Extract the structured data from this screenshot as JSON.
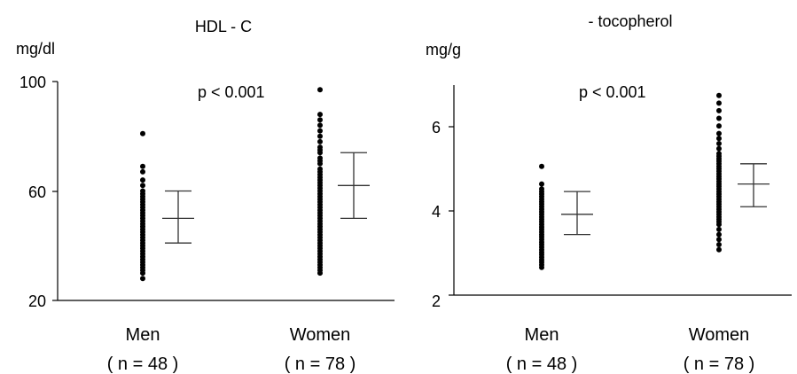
{
  "chart_data": [
    {
      "type": "scatter",
      "title": "HDL - C",
      "ylabel": "mg/dl",
      "annotation": "p < 0.001",
      "ylim": [
        20,
        100
      ],
      "yticks": [
        "100",
        "60",
        "20"
      ],
      "ytick_values": [
        100,
        60,
        20
      ],
      "categories": [
        "Men",
        "Women"
      ],
      "category_notes": [
        "( n = 48 )",
        "( n = 78 )"
      ],
      "series": [
        {
          "category": "Men",
          "points": [
            81,
            69,
            67,
            64,
            62,
            60,
            59,
            58,
            57,
            56,
            55,
            54,
            53,
            52,
            51,
            50,
            49,
            48,
            47,
            46,
            45,
            44,
            43,
            42,
            41,
            40,
            39,
            38,
            37,
            36,
            35,
            34,
            33,
            32,
            31,
            30,
            28
          ],
          "summary": {
            "mean": 50,
            "low": 41,
            "high": 60
          }
        },
        {
          "category": "Women",
          "points": [
            97,
            88,
            86,
            84,
            82,
            80,
            78,
            76,
            75,
            74,
            72,
            71,
            70,
            68,
            67,
            66,
            65,
            64,
            63,
            62,
            61,
            60,
            59,
            58,
            57,
            56,
            55,
            54,
            53,
            52,
            51,
            50,
            49,
            48,
            47,
            46,
            45,
            44,
            43,
            42,
            41,
            40,
            39,
            38,
            37,
            36,
            35,
            34,
            33,
            32,
            31,
            30
          ],
          "summary": {
            "mean": 62,
            "low": 50,
            "high": 74
          }
        }
      ]
    },
    {
      "type": "scatter",
      "title": "- tocopherol",
      "ylabel": "mg/g",
      "annotation": "p < 0.001",
      "ylim": [
        2,
        7
      ],
      "yticks": [
        "6",
        "4",
        "2"
      ],
      "ytick_values": [
        6,
        4,
        2
      ],
      "categories": [
        "Men",
        "Women"
      ],
      "category_notes": [
        "( n = 48 )",
        "( n = 78 )"
      ],
      "series": [
        {
          "category": "Men",
          "points": [
            4.55,
            4.2,
            4.1,
            4.05,
            4.0,
            3.95,
            3.9,
            3.85,
            3.8,
            3.75,
            3.7,
            3.65,
            3.6,
            3.55,
            3.5,
            3.45,
            3.4,
            3.35,
            3.3,
            3.25,
            3.2,
            3.15,
            3.1,
            3.05,
            3.0,
            2.95,
            2.9,
            2.85,
            2.8,
            2.75,
            2.7,
            2.65,
            2.6,
            2.55
          ],
          "summary": {
            "mean": 3.6,
            "low": 3.2,
            "high": 4.05
          }
        },
        {
          "category": "Women",
          "points": [
            5.95,
            5.8,
            5.65,
            5.5,
            5.35,
            5.2,
            5.1,
            5.0,
            4.9,
            4.8,
            4.75,
            4.7,
            4.65,
            4.6,
            4.55,
            4.5,
            4.45,
            4.4,
            4.35,
            4.3,
            4.25,
            4.2,
            4.15,
            4.1,
            4.05,
            4.0,
            3.95,
            3.9,
            3.85,
            3.8,
            3.75,
            3.7,
            3.65,
            3.6,
            3.55,
            3.5,
            3.45,
            3.4,
            3.3,
            3.2,
            3.1,
            3.0,
            2.9
          ],
          "summary": {
            "mean": 4.2,
            "low": 3.75,
            "high": 4.6
          }
        }
      ]
    }
  ]
}
